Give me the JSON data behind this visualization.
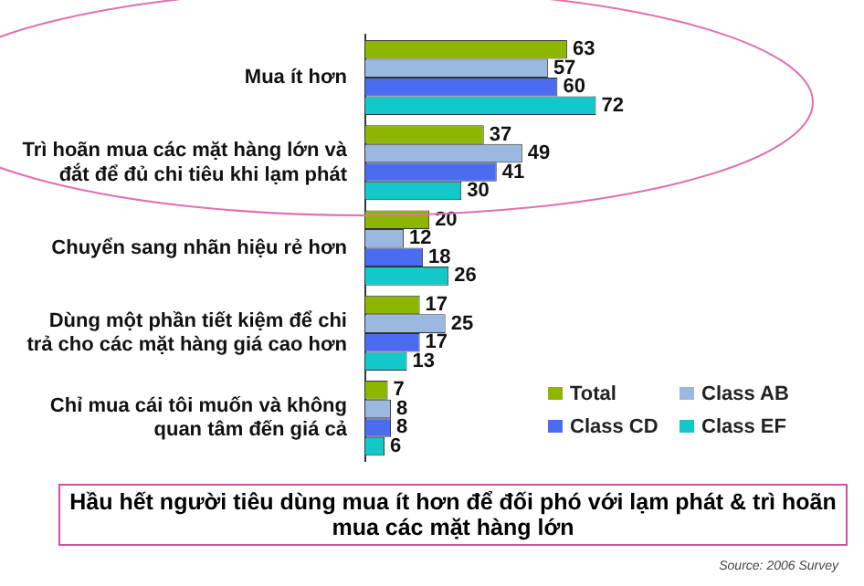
{
  "chart_data": {
    "type": "bar",
    "orientation": "horizontal",
    "title": "Hầu hết người tiêu dùng mua ít hơn để đối phó với lạm phát & trì hoãn mua các mặt hàng lớn",
    "categories": [
      "Mua ít hơn",
      "Trì hoãn mua các mặt hàng lớn và đắt để đủ chi tiêu khi lạm phát",
      "Chuyển sang nhãn hiệu rẻ hơn",
      "Dùng một phần tiết kiệm để chi trả cho các mặt hàng giá cao hơn",
      "Chỉ mua cái tôi muốn và không quan tâm đến giá cả"
    ],
    "series": [
      {
        "name": "Total",
        "color": "#8db600",
        "values": [
          63,
          37,
          20,
          17,
          7
        ]
      },
      {
        "name": "Class AB",
        "color": "#9ab8e0",
        "values": [
          57,
          49,
          12,
          25,
          8
        ]
      },
      {
        "name": "Class CD",
        "color": "#4a6cf0",
        "values": [
          60,
          41,
          18,
          17,
          8
        ]
      },
      {
        "name": "Class EF",
        "color": "#12c8c8",
        "values": [
          72,
          30,
          26,
          13,
          6
        ]
      }
    ],
    "data_labels": true,
    "legend": "bottom right",
    "annotations": [
      "Source: 2006 Survey"
    ]
  }
}
